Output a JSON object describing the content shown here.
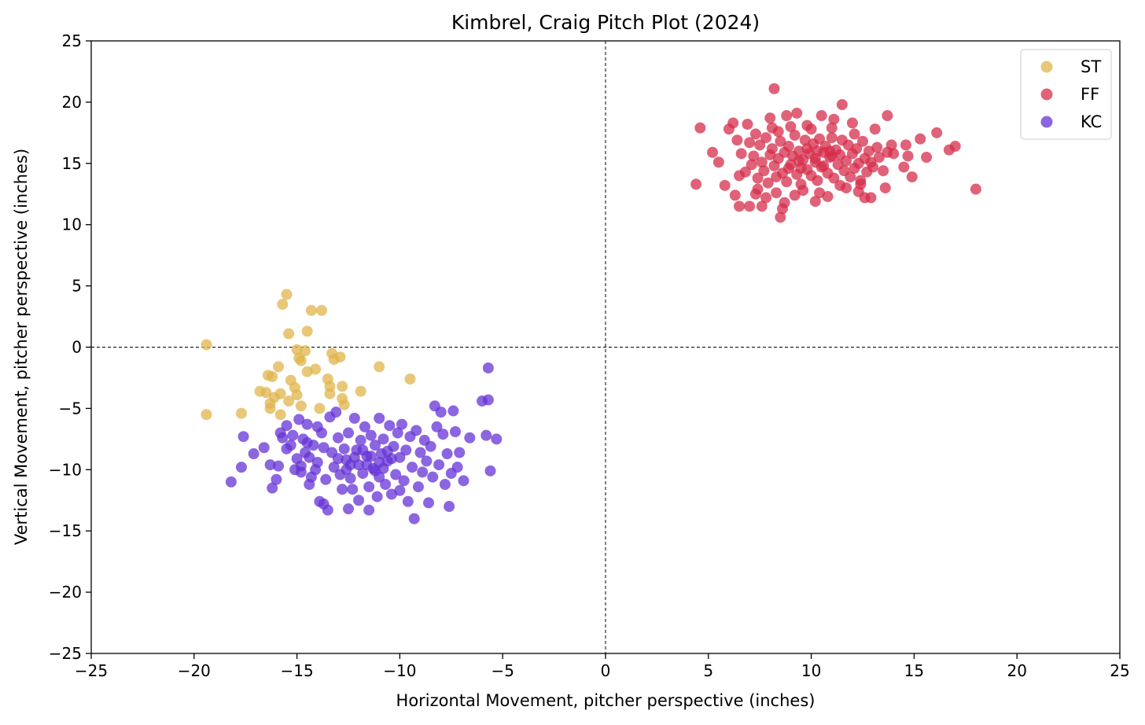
{
  "chart_data": {
    "type": "scatter",
    "title": "Kimbrel, Craig Pitch Plot (2024)",
    "xlabel": "Horizontal Movement, pitcher perspective (inches)",
    "ylabel": "Vertical Movement, pitcher perspective (inches)",
    "xlim": [
      -25,
      25
    ],
    "ylim": [
      -25,
      25
    ],
    "xticks": [
      -25,
      -20,
      -15,
      -10,
      -5,
      0,
      5,
      10,
      15,
      20,
      25
    ],
    "yticks": [
      -25,
      -20,
      -15,
      -10,
      -5,
      0,
      5,
      10,
      15,
      20,
      25
    ],
    "xtick_labels": [
      "−25",
      "−20",
      "−15",
      "−10",
      "−5",
      "0",
      "5",
      "10",
      "15",
      "20",
      "25"
    ],
    "ytick_labels": [
      "−25",
      "−20",
      "−15",
      "−10",
      "−5",
      "0",
      "5",
      "10",
      "15",
      "20",
      "25"
    ],
    "reference_lines": [
      {
        "axis": "x",
        "value": 0,
        "style": "dashed"
      },
      {
        "axis": "y",
        "value": 0,
        "style": "dashed"
      }
    ],
    "grid": false,
    "legend_position": "top-right",
    "series": [
      {
        "name": "ST",
        "color": "#E0B44C",
        "points": [
          [
            -19.4,
            0.2
          ],
          [
            -19.4,
            -5.5
          ],
          [
            -17.7,
            -5.4
          ],
          [
            -16.8,
            -3.6
          ],
          [
            -16.5,
            -3.7
          ],
          [
            -16.4,
            -2.3
          ],
          [
            -16.3,
            -4.6
          ],
          [
            -16.3,
            -5.0
          ],
          [
            -16.2,
            -2.4
          ],
          [
            -16.1,
            -4.1
          ],
          [
            -15.9,
            -1.6
          ],
          [
            -15.8,
            -3.8
          ],
          [
            -15.8,
            -5.5
          ],
          [
            -15.7,
            3.5
          ],
          [
            -15.5,
            4.3
          ],
          [
            -15.4,
            -4.4
          ],
          [
            -15.4,
            1.1
          ],
          [
            -15.3,
            -2.7
          ],
          [
            -15.1,
            -3.3
          ],
          [
            -15.0,
            -3.9
          ],
          [
            -15.0,
            -0.2
          ],
          [
            -14.9,
            -0.9
          ],
          [
            -14.8,
            -1.1
          ],
          [
            -14.8,
            -4.8
          ],
          [
            -14.6,
            -0.3
          ],
          [
            -14.5,
            1.3
          ],
          [
            -14.5,
            -2.0
          ],
          [
            -14.3,
            3.0
          ],
          [
            -14.1,
            -1.8
          ],
          [
            -13.9,
            -5.0
          ],
          [
            -13.8,
            3.0
          ],
          [
            -13.5,
            -2.6
          ],
          [
            -13.4,
            -3.2
          ],
          [
            -13.4,
            -3.8
          ],
          [
            -13.3,
            -0.5
          ],
          [
            -13.2,
            -1.0
          ],
          [
            -12.9,
            -0.8
          ],
          [
            -12.8,
            -3.2
          ],
          [
            -12.8,
            -4.2
          ],
          [
            -12.7,
            -4.7
          ],
          [
            -11.9,
            -3.6
          ],
          [
            -11.0,
            -1.6
          ],
          [
            -9.5,
            -2.6
          ]
        ]
      },
      {
        "name": "FF",
        "color": "#D62D4B",
        "points": [
          [
            8.2,
            21.1
          ],
          [
            4.6,
            17.9
          ],
          [
            4.4,
            13.3
          ],
          [
            5.2,
            15.9
          ],
          [
            5.5,
            15.1
          ],
          [
            5.8,
            13.2
          ],
          [
            6.0,
            17.8
          ],
          [
            6.2,
            18.3
          ],
          [
            6.3,
            12.4
          ],
          [
            6.5,
            11.5
          ],
          [
            6.9,
            18.2
          ],
          [
            7.0,
            11.5
          ],
          [
            7.3,
            12.5
          ],
          [
            7.6,
            11.5
          ],
          [
            7.8,
            12.2
          ],
          [
            8.0,
            18.7
          ],
          [
            8.4,
            17.6
          ],
          [
            8.5,
            10.6
          ],
          [
            8.6,
            11.3
          ],
          [
            8.7,
            11.8
          ],
          [
            8.8,
            18.9
          ],
          [
            9.3,
            19.1
          ],
          [
            9.8,
            18.1
          ],
          [
            10.2,
            11.9
          ],
          [
            10.5,
            18.9
          ],
          [
            10.8,
            12.3
          ],
          [
            11.1,
            18.6
          ],
          [
            11.5,
            19.8
          ],
          [
            11.7,
            13.0
          ],
          [
            12.0,
            18.3
          ],
          [
            12.3,
            12.7
          ],
          [
            12.6,
            12.2
          ],
          [
            12.9,
            12.2
          ],
          [
            13.1,
            17.8
          ],
          [
            13.6,
            13.0
          ],
          [
            13.7,
            18.9
          ],
          [
            13.9,
            16.5
          ],
          [
            14.0,
            15.8
          ],
          [
            14.5,
            14.7
          ],
          [
            14.6,
            16.5
          ],
          [
            14.7,
            15.6
          ],
          [
            14.9,
            13.9
          ],
          [
            15.3,
            17.0
          ],
          [
            15.6,
            15.5
          ],
          [
            16.1,
            17.5
          ],
          [
            16.7,
            16.1
          ],
          [
            17.0,
            16.4
          ],
          [
            18.0,
            12.9
          ],
          [
            6.6,
            15.8
          ],
          [
            6.8,
            14.3
          ],
          [
            7.0,
            16.7
          ],
          [
            7.1,
            14.9
          ],
          [
            7.2,
            15.6
          ],
          [
            7.4,
            13.8
          ],
          [
            7.5,
            16.5
          ],
          [
            7.6,
            15.1
          ],
          [
            7.7,
            14.4
          ],
          [
            7.8,
            17.1
          ],
          [
            7.9,
            13.4
          ],
          [
            8.0,
            15.7
          ],
          [
            8.1,
            16.2
          ],
          [
            8.2,
            14.8
          ],
          [
            8.3,
            13.9
          ],
          [
            8.4,
            15.4
          ],
          [
            8.5,
            16.8
          ],
          [
            8.6,
            14.2
          ],
          [
            8.7,
            15.9
          ],
          [
            8.8,
            13.5
          ],
          [
            8.9,
            16.4
          ],
          [
            9.0,
            14.9
          ],
          [
            9.1,
            15.6
          ],
          [
            9.2,
            17.3
          ],
          [
            9.3,
            14.1
          ],
          [
            9.4,
            16.0
          ],
          [
            9.5,
            13.3
          ],
          [
            9.6,
            15.3
          ],
          [
            9.7,
            16.9
          ],
          [
            9.8,
            14.5
          ],
          [
            9.9,
            15.8
          ],
          [
            10.0,
            14.0
          ],
          [
            10.1,
            16.6
          ],
          [
            10.2,
            15.1
          ],
          [
            10.3,
            13.6
          ],
          [
            10.4,
            17.0
          ],
          [
            10.5,
            14.7
          ],
          [
            10.6,
            15.9
          ],
          [
            10.7,
            16.4
          ],
          [
            10.8,
            14.2
          ],
          [
            10.9,
            15.5
          ],
          [
            11.0,
            17.1
          ],
          [
            11.1,
            13.8
          ],
          [
            11.2,
            16.1
          ],
          [
            11.3,
            14.9
          ],
          [
            11.4,
            15.7
          ],
          [
            11.5,
            16.9
          ],
          [
            11.6,
            14.4
          ],
          [
            11.7,
            15.2
          ],
          [
            11.8,
            16.5
          ],
          [
            11.9,
            13.9
          ],
          [
            12.0,
            15.8
          ],
          [
            12.1,
            14.6
          ],
          [
            12.2,
            16.2
          ],
          [
            12.3,
            15.0
          ],
          [
            12.4,
            13.6
          ],
          [
            12.5,
            16.8
          ],
          [
            12.6,
            15.4
          ],
          [
            12.7,
            14.3
          ],
          [
            12.8,
            16.0
          ],
          [
            12.9,
            15.1
          ],
          [
            13.0,
            14.7
          ],
          [
            13.2,
            16.3
          ],
          [
            13.3,
            15.5
          ],
          [
            13.5,
            14.4
          ],
          [
            13.7,
            15.9
          ],
          [
            6.4,
            16.9
          ],
          [
            6.5,
            14.0
          ],
          [
            7.3,
            17.4
          ],
          [
            7.4,
            12.9
          ],
          [
            8.1,
            17.9
          ],
          [
            8.3,
            12.6
          ],
          [
            9.0,
            18.0
          ],
          [
            9.2,
            12.4
          ],
          [
            9.6,
            12.8
          ],
          [
            10.0,
            17.8
          ],
          [
            10.4,
            12.6
          ],
          [
            11.0,
            17.9
          ],
          [
            11.4,
            13.2
          ],
          [
            12.1,
            17.4
          ],
          [
            12.4,
            13.3
          ],
          [
            9.4,
            15.2
          ],
          [
            9.8,
            16.2
          ],
          [
            10.2,
            15.4
          ],
          [
            10.6,
            14.8
          ],
          [
            11.0,
            15.6
          ],
          [
            8.9,
            14.6
          ],
          [
            9.5,
            14.6
          ],
          [
            10.3,
            16.0
          ],
          [
            10.9,
            16.0
          ]
        ]
      },
      {
        "name": "KC",
        "color": "#6633D6",
        "points": [
          [
            -18.2,
            -11.0
          ],
          [
            -17.7,
            -9.8
          ],
          [
            -17.6,
            -7.3
          ],
          [
            -17.1,
            -8.7
          ],
          [
            -16.6,
            -8.2
          ],
          [
            -16.3,
            -9.6
          ],
          [
            -16.2,
            -11.5
          ],
          [
            -16.0,
            -10.8
          ],
          [
            -15.9,
            -9.7
          ],
          [
            -15.8,
            -7.0
          ],
          [
            -15.7,
            -7.4
          ],
          [
            -15.5,
            -8.3
          ],
          [
            -15.5,
            -6.4
          ],
          [
            -15.3,
            -8.0
          ],
          [
            -15.2,
            -7.2
          ],
          [
            -15.1,
            -10.0
          ],
          [
            -15.0,
            -9.1
          ],
          [
            -14.9,
            -5.9
          ],
          [
            -14.8,
            -9.7
          ],
          [
            -14.8,
            -10.2
          ],
          [
            -14.7,
            -7.5
          ],
          [
            -14.6,
            -8.6
          ],
          [
            -14.5,
            -7.8
          ],
          [
            -14.5,
            -6.3
          ],
          [
            -14.4,
            -9.0
          ],
          [
            -14.4,
            -11.2
          ],
          [
            -14.3,
            -10.6
          ],
          [
            -14.2,
            -8.0
          ],
          [
            -14.1,
            -10.0
          ],
          [
            -14.0,
            -6.5
          ],
          [
            -14.0,
            -9.4
          ],
          [
            -13.9,
            -12.6
          ],
          [
            -13.8,
            -7.0
          ],
          [
            -13.7,
            -8.2
          ],
          [
            -13.7,
            -12.8
          ],
          [
            -13.6,
            -10.8
          ],
          [
            -13.5,
            -13.3
          ],
          [
            -13.4,
            -5.7
          ],
          [
            -13.3,
            -8.6
          ],
          [
            -13.2,
            -9.8
          ],
          [
            -13.1,
            -5.3
          ],
          [
            -13.0,
            -7.4
          ],
          [
            -12.9,
            -10.4
          ],
          [
            -12.8,
            -11.6
          ],
          [
            -12.7,
            -8.3
          ],
          [
            -12.6,
            -9.2
          ],
          [
            -12.5,
            -7.0
          ],
          [
            -12.5,
            -13.2
          ],
          [
            -12.4,
            -10.7
          ],
          [
            -12.3,
            -11.6
          ],
          [
            -12.2,
            -5.8
          ],
          [
            -12.1,
            -8.4
          ],
          [
            -12.0,
            -9.6
          ],
          [
            -12.0,
            -12.5
          ],
          [
            -11.9,
            -7.6
          ],
          [
            -11.8,
            -10.3
          ],
          [
            -11.7,
            -6.5
          ],
          [
            -11.6,
            -8.9
          ],
          [
            -11.5,
            -11.4
          ],
          [
            -11.5,
            -13.3
          ],
          [
            -11.4,
            -7.2
          ],
          [
            -11.3,
            -9.9
          ],
          [
            -11.2,
            -8.0
          ],
          [
            -11.1,
            -12.2
          ],
          [
            -11.0,
            -5.8
          ],
          [
            -11.0,
            -10.6
          ],
          [
            -10.9,
            -8.7
          ],
          [
            -10.8,
            -7.5
          ],
          [
            -10.7,
            -11.2
          ],
          [
            -10.6,
            -9.3
          ],
          [
            -10.5,
            -6.4
          ],
          [
            -10.4,
            -12.0
          ],
          [
            -10.3,
            -8.1
          ],
          [
            -10.2,
            -10.4
          ],
          [
            -10.1,
            -7.0
          ],
          [
            -10.0,
            -9.0
          ],
          [
            -10.0,
            -11.7
          ],
          [
            -9.9,
            -6.3
          ],
          [
            -9.8,
            -10.9
          ],
          [
            -9.7,
            -8.4
          ],
          [
            -9.6,
            -12.6
          ],
          [
            -9.5,
            -7.3
          ],
          [
            -9.4,
            -9.8
          ],
          [
            -9.3,
            -14.0
          ],
          [
            -9.2,
            -6.8
          ],
          [
            -9.1,
            -11.4
          ],
          [
            -9.0,
            -8.6
          ],
          [
            -8.9,
            -10.2
          ],
          [
            -8.8,
            -7.6
          ],
          [
            -8.7,
            -9.3
          ],
          [
            -8.6,
            -12.7
          ],
          [
            -8.5,
            -8.1
          ],
          [
            -8.4,
            -10.6
          ],
          [
            -8.3,
            -4.8
          ],
          [
            -8.2,
            -6.5
          ],
          [
            -8.1,
            -9.6
          ],
          [
            -8.0,
            -5.3
          ],
          [
            -7.9,
            -7.1
          ],
          [
            -7.8,
            -11.2
          ],
          [
            -7.7,
            -8.7
          ],
          [
            -7.6,
            -13.0
          ],
          [
            -7.5,
            -10.3
          ],
          [
            -7.4,
            -5.2
          ],
          [
            -7.3,
            -6.9
          ],
          [
            -7.2,
            -9.8
          ],
          [
            -7.1,
            -8.6
          ],
          [
            -6.9,
            -10.9
          ],
          [
            -6.6,
            -7.4
          ],
          [
            -6.0,
            -4.4
          ],
          [
            -5.8,
            -7.2
          ],
          [
            -5.7,
            -4.3
          ],
          [
            -5.7,
            -1.7
          ],
          [
            -5.6,
            -10.1
          ],
          [
            -5.3,
            -7.5
          ],
          [
            -12.2,
            -9.0
          ],
          [
            -11.8,
            -8.4
          ],
          [
            -11.4,
            -8.9
          ],
          [
            -11.0,
            -9.4
          ],
          [
            -10.6,
            -8.5
          ],
          [
            -12.6,
            -10.0
          ],
          [
            -11.2,
            -10.1
          ],
          [
            -10.8,
            -9.9
          ],
          [
            -13.0,
            -9.1
          ],
          [
            -12.4,
            -9.6
          ],
          [
            -11.6,
            -9.6
          ],
          [
            -10.4,
            -9.1
          ]
        ]
      }
    ]
  }
}
